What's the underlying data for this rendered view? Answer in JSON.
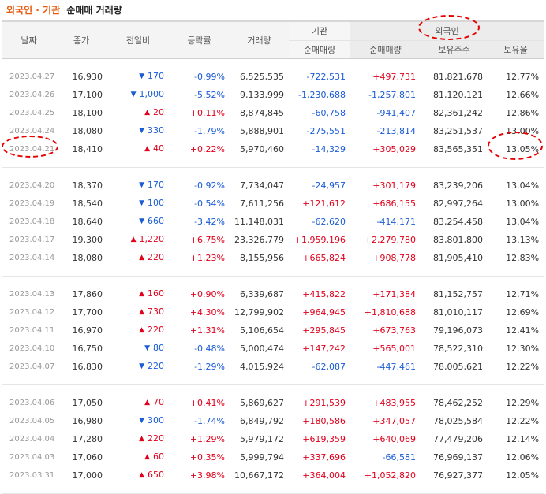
{
  "title": {
    "part1": "외국인 · 기관",
    "part2": "순매매 거래량"
  },
  "headers": {
    "date": "날짜",
    "close": "종가",
    "change": "전일비",
    "rate": "등락률",
    "volume": "거래량",
    "institution": "기관",
    "foreign": "외국인",
    "inst_net": "순매매량",
    "foreign_net": "순매매량",
    "holdings": "보유주수",
    "ratio": "보유율"
  },
  "groups": [
    [
      {
        "date": "2023.04.27",
        "close": "16,930",
        "dir": "down",
        "change": "170",
        "rate": "-0.99%",
        "volume": "6,525,535",
        "inst": "-722,531",
        "foreign": "+497,731",
        "holdings": "81,821,678",
        "ratio": "12.77%"
      },
      {
        "date": "2023.04.26",
        "close": "17,100",
        "dir": "down",
        "change": "1,000",
        "rate": "-5.52%",
        "volume": "9,133,999",
        "inst": "-1,230,688",
        "foreign": "-1,257,801",
        "holdings": "81,120,121",
        "ratio": "12.66%"
      },
      {
        "date": "2023.04.25",
        "close": "18,100",
        "dir": "up",
        "change": "20",
        "rate": "+0.11%",
        "volume": "8,874,845",
        "inst": "-60,758",
        "foreign": "-941,407",
        "holdings": "82,361,242",
        "ratio": "12.86%"
      },
      {
        "date": "2023.04.24",
        "close": "18,080",
        "dir": "down",
        "change": "330",
        "rate": "-1.79%",
        "volume": "5,888,901",
        "inst": "-275,551",
        "foreign": "-213,814",
        "holdings": "83,251,537",
        "ratio": "13.00%"
      },
      {
        "date": "2023.04.21",
        "close": "18,410",
        "dir": "up",
        "change": "40",
        "rate": "+0.22%",
        "volume": "5,970,460",
        "inst": "-14,329",
        "foreign": "+305,029",
        "holdings": "83,565,351",
        "ratio": "13.05%"
      }
    ],
    [
      {
        "date": "2023.04.20",
        "close": "18,370",
        "dir": "down",
        "change": "170",
        "rate": "-0.92%",
        "volume": "7,734,047",
        "inst": "-24,957",
        "foreign": "+301,179",
        "holdings": "83,239,206",
        "ratio": "13.04%"
      },
      {
        "date": "2023.04.19",
        "close": "18,540",
        "dir": "down",
        "change": "100",
        "rate": "-0.54%",
        "volume": "7,611,256",
        "inst": "+121,612",
        "foreign": "+686,155",
        "holdings": "82,997,264",
        "ratio": "13.00%"
      },
      {
        "date": "2023.04.18",
        "close": "18,640",
        "dir": "down",
        "change": "660",
        "rate": "-3.42%",
        "volume": "11,148,031",
        "inst": "-62,620",
        "foreign": "-414,171",
        "holdings": "83,254,458",
        "ratio": "13.04%"
      },
      {
        "date": "2023.04.17",
        "close": "19,300",
        "dir": "up",
        "change": "1,220",
        "rate": "+6.75%",
        "volume": "23,326,779",
        "inst": "+1,959,196",
        "foreign": "+2,279,780",
        "holdings": "83,801,800",
        "ratio": "13.13%"
      },
      {
        "date": "2023.04.14",
        "close": "18,080",
        "dir": "up",
        "change": "220",
        "rate": "+1.23%",
        "volume": "8,155,956",
        "inst": "+665,824",
        "foreign": "+908,778",
        "holdings": "81,905,410",
        "ratio": "12.83%"
      }
    ],
    [
      {
        "date": "2023.04.13",
        "close": "17,860",
        "dir": "up",
        "change": "160",
        "rate": "+0.90%",
        "volume": "6,339,687",
        "inst": "+415,822",
        "foreign": "+171,384",
        "holdings": "81,152,757",
        "ratio": "12.71%"
      },
      {
        "date": "2023.04.12",
        "close": "17,700",
        "dir": "up",
        "change": "730",
        "rate": "+4.30%",
        "volume": "12,799,902",
        "inst": "+964,945",
        "foreign": "+1,810,688",
        "holdings": "81,010,117",
        "ratio": "12.69%"
      },
      {
        "date": "2023.04.11",
        "close": "16,970",
        "dir": "up",
        "change": "220",
        "rate": "+1.31%",
        "volume": "5,106,654",
        "inst": "+295,845",
        "foreign": "+673,763",
        "holdings": "79,196,073",
        "ratio": "12.41%"
      },
      {
        "date": "2023.04.10",
        "close": "16,750",
        "dir": "down",
        "change": "80",
        "rate": "-0.48%",
        "volume": "5,000,474",
        "inst": "+147,242",
        "foreign": "+565,001",
        "holdings": "78,522,310",
        "ratio": "12.30%"
      },
      {
        "date": "2023.04.07",
        "close": "16,830",
        "dir": "down",
        "change": "220",
        "rate": "-1.29%",
        "volume": "4,015,924",
        "inst": "-62,087",
        "foreign": "-447,461",
        "holdings": "78,005,621",
        "ratio": "12.22%"
      }
    ],
    [
      {
        "date": "2023.04.06",
        "close": "17,050",
        "dir": "up",
        "change": "70",
        "rate": "+0.41%",
        "volume": "5,869,627",
        "inst": "+291,539",
        "foreign": "+483,955",
        "holdings": "78,462,252",
        "ratio": "12.29%"
      },
      {
        "date": "2023.04.05",
        "close": "16,980",
        "dir": "down",
        "change": "300",
        "rate": "-1.74%",
        "volume": "6,849,792",
        "inst": "+180,586",
        "foreign": "+347,057",
        "holdings": "78,025,584",
        "ratio": "12.22%"
      },
      {
        "date": "2023.04.04",
        "close": "17,280",
        "dir": "up",
        "change": "220",
        "rate": "+1.29%",
        "volume": "5,979,172",
        "inst": "+619,359",
        "foreign": "+640,069",
        "holdings": "77,479,206",
        "ratio": "12.14%"
      },
      {
        "date": "2023.04.03",
        "close": "17,060",
        "dir": "up",
        "change": "60",
        "rate": "+0.35%",
        "volume": "5,999,794",
        "inst": "+337,696",
        "foreign": "-66,581",
        "holdings": "76,969,137",
        "ratio": "12.06%"
      },
      {
        "date": "2023.03.31",
        "close": "17,000",
        "dir": "up",
        "change": "650",
        "rate": "+3.98%",
        "volume": "10,667,172",
        "inst": "+364,004",
        "foreign": "+1,052,820",
        "holdings": "76,927,377",
        "ratio": "12.05%"
      }
    ]
  ],
  "colors": {
    "up": "#e0001b",
    "down": "#1a5bd6",
    "title_accent": "#e8590c",
    "highlight": "#e60000"
  }
}
